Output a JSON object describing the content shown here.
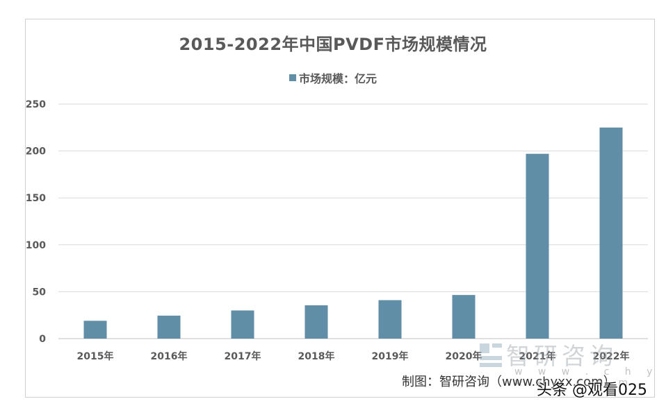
{
  "chart_data": {
    "type": "bar",
    "title": "2015-2022年中国PVDF市场规模情况",
    "legend": "市场规模：亿元",
    "categories": [
      "2015年",
      "2016年",
      "2017年",
      "2018年",
      "2019年",
      "2020年",
      "2021年",
      "2022年"
    ],
    "series": [
      {
        "name": "市场规模：亿元",
        "values": [
          19,
          24.5,
          30,
          35.5,
          41,
          46.5,
          197,
          225
        ]
      }
    ],
    "ylim": [
      0,
      250
    ],
    "yticks": [
      0,
      50,
      100,
      150,
      200,
      250
    ],
    "xlabel": "",
    "ylabel": "",
    "grid": true,
    "legend_position": "top-center",
    "colors": {
      "bar": "#5f8ea6",
      "grid": "#d9d9d9",
      "text": "#595959"
    }
  },
  "credit": "制图：智研咨询（www.chyxx.com）",
  "watermark": {
    "text": "智研咨询",
    "url": "w w w . c h y x x . c o m"
  },
  "overlay": "头条 @观看025"
}
